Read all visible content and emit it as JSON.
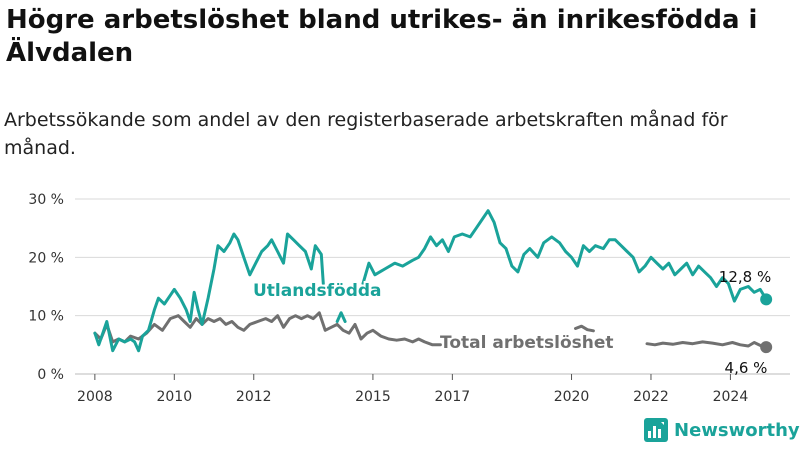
{
  "title": "Högre arbetslöshet bland utrikes- än inrikesfödda i Älvdalen",
  "subtitle": "Arbetssökande som andel av den registerbaserade arbetskraften månad för månad.",
  "logo_text": "Newsworthy",
  "colors": {
    "utlandsfodda": "#1aa39a",
    "total": "#707070",
    "grid": "#d9d9d9",
    "axis_text": "#333333"
  },
  "chart_data": {
    "type": "line",
    "x_unit": "year",
    "xlim": [
      2007.5,
      2025.5
    ],
    "ylim": [
      0,
      30
    ],
    "y_ticks": [
      0,
      10,
      20,
      30
    ],
    "y_tick_labels": [
      "0 %",
      "10 %",
      "20 %",
      "30 %"
    ],
    "x_ticks": [
      2008,
      2010,
      2012,
      2015,
      2017,
      2020,
      2022,
      2024
    ],
    "x_tick_labels": [
      "2008",
      "2010",
      "2012",
      "2015",
      "2017",
      "2020",
      "2022",
      "2024"
    ],
    "grid": true,
    "series": [
      {
        "name": "Utlandsfödda",
        "end_label": "12,8 %",
        "segments": [
          [
            [
              2008.0,
              7.0
            ],
            [
              2008.1,
              5.0
            ],
            [
              2008.2,
              7.0
            ],
            [
              2008.3,
              9.0
            ],
            [
              2008.45,
              4.0
            ],
            [
              2008.6,
              6.0
            ],
            [
              2008.75,
              5.5
            ],
            [
              2008.9,
              6.0
            ],
            [
              2009.0,
              5.5
            ],
            [
              2009.1,
              4.0
            ],
            [
              2009.2,
              6.5
            ],
            [
              2009.35,
              7.5
            ],
            [
              2009.5,
              11.0
            ],
            [
              2009.6,
              13.0
            ],
            [
              2009.75,
              12.0
            ],
            [
              2009.9,
              13.5
            ],
            [
              2010.0,
              14.5
            ],
            [
              2010.15,
              13.0
            ],
            [
              2010.3,
              11.0
            ],
            [
              2010.4,
              9.0
            ],
            [
              2010.5,
              14.0
            ],
            [
              2010.6,
              11.0
            ],
            [
              2010.7,
              8.5
            ],
            [
              2010.85,
              13.0
            ],
            [
              2011.0,
              18.0
            ],
            [
              2011.1,
              22.0
            ],
            [
              2011.25,
              21.0
            ],
            [
              2011.4,
              22.5
            ],
            [
              2011.5,
              24.0
            ],
            [
              2011.6,
              23.0
            ],
            [
              2011.75,
              20.0
            ],
            [
              2011.9,
              17.0
            ],
            [
              2012.05,
              19.0
            ],
            [
              2012.2,
              21.0
            ],
            [
              2012.35,
              22.0
            ],
            [
              2012.45,
              23.0
            ],
            [
              2012.6,
              21.0
            ],
            [
              2012.75,
              19.0
            ],
            [
              2012.85,
              24.0
            ],
            [
              2013.0,
              23.0
            ],
            [
              2013.15,
              22.0
            ],
            [
              2013.3,
              21.0
            ],
            [
              2013.45,
              18.0
            ],
            [
              2013.55,
              22.0
            ],
            [
              2013.7,
              20.5
            ],
            [
              2013.75,
              15.5
            ]
          ],
          [
            [
              2014.1,
              9.0
            ],
            [
              2014.2,
              10.5
            ],
            [
              2014.3,
              9.0
            ]
          ],
          [
            [
              2014.75,
              15.5
            ],
            [
              2014.9,
              19.0
            ],
            [
              2015.05,
              17.0
            ],
            [
              2015.3,
              18.0
            ],
            [
              2015.55,
              19.0
            ],
            [
              2015.75,
              18.5
            ],
            [
              2016.0,
              19.5
            ],
            [
              2016.15,
              20.0
            ],
            [
              2016.3,
              21.5
            ],
            [
              2016.45,
              23.5
            ],
            [
              2016.6,
              22.0
            ],
            [
              2016.75,
              23.0
            ],
            [
              2016.9,
              21.0
            ],
            [
              2017.05,
              23.5
            ],
            [
              2017.25,
              24.0
            ],
            [
              2017.45,
              23.5
            ],
            [
              2017.6,
              25.0
            ],
            [
              2017.75,
              26.5
            ],
            [
              2017.9,
              28.0
            ],
            [
              2018.05,
              26.0
            ],
            [
              2018.2,
              22.5
            ],
            [
              2018.35,
              21.5
            ],
            [
              2018.5,
              18.5
            ],
            [
              2018.65,
              17.5
            ],
            [
              2018.8,
              20.5
            ],
            [
              2018.95,
              21.5
            ],
            [
              2019.15,
              20.0
            ],
            [
              2019.3,
              22.5
            ],
            [
              2019.5,
              23.5
            ],
            [
              2019.7,
              22.5
            ],
            [
              2019.85,
              21.0
            ],
            [
              2020.0,
              20.0
            ],
            [
              2020.15,
              18.5
            ],
            [
              2020.3,
              22.0
            ],
            [
              2020.45,
              21.0
            ],
            [
              2020.6,
              22.0
            ],
            [
              2020.8,
              21.5
            ],
            [
              2020.95,
              23.0
            ],
            [
              2021.1,
              23.0
            ],
            [
              2021.25,
              22.0
            ],
            [
              2021.4,
              21.0
            ],
            [
              2021.55,
              20.0
            ],
            [
              2021.7,
              17.5
            ],
            [
              2021.85,
              18.5
            ],
            [
              2022.0,
              20.0
            ],
            [
              2022.15,
              19.0
            ],
            [
              2022.3,
              18.0
            ],
            [
              2022.45,
              19.0
            ],
            [
              2022.6,
              17.0
            ],
            [
              2022.75,
              18.0
            ],
            [
              2022.9,
              19.0
            ],
            [
              2023.05,
              17.0
            ],
            [
              2023.2,
              18.5
            ],
            [
              2023.35,
              17.5
            ],
            [
              2023.5,
              16.5
            ],
            [
              2023.65,
              15.0
            ],
            [
              2023.8,
              16.5
            ],
            [
              2023.95,
              15.5
            ],
            [
              2024.1,
              12.5
            ],
            [
              2024.25,
              14.5
            ],
            [
              2024.45,
              15.0
            ],
            [
              2024.6,
              14.0
            ],
            [
              2024.75,
              14.5
            ],
            [
              2024.9,
              12.8
            ]
          ]
        ]
      },
      {
        "name": "Total arbetslöshet",
        "end_label": "4,6 %",
        "segments": [
          [
            [
              2008.0,
              7.0
            ],
            [
              2008.15,
              6.0
            ],
            [
              2008.3,
              8.5
            ],
            [
              2008.45,
              5.5
            ],
            [
              2008.6,
              6.0
            ],
            [
              2008.75,
              5.5
            ],
            [
              2008.9,
              6.5
            ],
            [
              2009.1,
              6.0
            ],
            [
              2009.3,
              7.0
            ],
            [
              2009.5,
              8.5
            ],
            [
              2009.7,
              7.5
            ],
            [
              2009.9,
              9.5
            ],
            [
              2010.1,
              10.0
            ],
            [
              2010.25,
              9.0
            ],
            [
              2010.4,
              8.0
            ],
            [
              2010.55,
              9.5
            ],
            [
              2010.7,
              8.5
            ],
            [
              2010.85,
              9.5
            ],
            [
              2011.0,
              9.0
            ],
            [
              2011.15,
              9.5
            ],
            [
              2011.3,
              8.5
            ],
            [
              2011.45,
              9.0
            ],
            [
              2011.6,
              8.0
            ],
            [
              2011.75,
              7.5
            ],
            [
              2011.9,
              8.5
            ],
            [
              2012.1,
              9.0
            ],
            [
              2012.3,
              9.5
            ],
            [
              2012.45,
              9.0
            ],
            [
              2012.6,
              10.0
            ],
            [
              2012.75,
              8.0
            ],
            [
              2012.9,
              9.5
            ],
            [
              2013.05,
              10.0
            ],
            [
              2013.2,
              9.5
            ],
            [
              2013.35,
              10.0
            ],
            [
              2013.5,
              9.5
            ],
            [
              2013.65,
              10.5
            ],
            [
              2013.8,
              7.5
            ],
            [
              2013.95,
              8.0
            ],
            [
              2014.1,
              8.5
            ],
            [
              2014.25,
              7.5
            ],
            [
              2014.4,
              7.0
            ],
            [
              2014.55,
              8.5
            ],
            [
              2014.7,
              6.0
            ],
            [
              2014.85,
              7.0
            ],
            [
              2015.0,
              7.5
            ],
            [
              2015.2,
              6.5
            ],
            [
              2015.4,
              6.0
            ],
            [
              2015.6,
              5.8
            ],
            [
              2015.8,
              6.0
            ],
            [
              2016.0,
              5.5
            ],
            [
              2016.15,
              6.0
            ],
            [
              2016.3,
              5.5
            ],
            [
              2016.5,
              5.0
            ],
            [
              2016.7,
              5.0
            ]
          ]
        ],
        "extra_segments": [
          [
            [
              2020.1,
              7.8
            ],
            [
              2020.25,
              8.2
            ],
            [
              2020.4,
              7.6
            ],
            [
              2020.55,
              7.4
            ]
          ],
          [
            [
              2021.9,
              5.2
            ],
            [
              2022.1,
              5.0
            ],
            [
              2022.3,
              5.3
            ],
            [
              2022.55,
              5.1
            ],
            [
              2022.8,
              5.4
            ],
            [
              2023.05,
              5.2
            ],
            [
              2023.3,
              5.5
            ],
            [
              2023.55,
              5.3
            ],
            [
              2023.8,
              5.0
            ],
            [
              2024.05,
              5.4
            ],
            [
              2024.25,
              5.0
            ],
            [
              2024.45,
              4.8
            ],
            [
              2024.6,
              5.4
            ],
            [
              2024.75,
              4.9
            ],
            [
              2024.9,
              4.6
            ]
          ]
        ]
      }
    ],
    "annotations": {
      "utlandsfodda_label": "Utlandsfödda",
      "total_label": "Total arbetslöshet"
    }
  }
}
